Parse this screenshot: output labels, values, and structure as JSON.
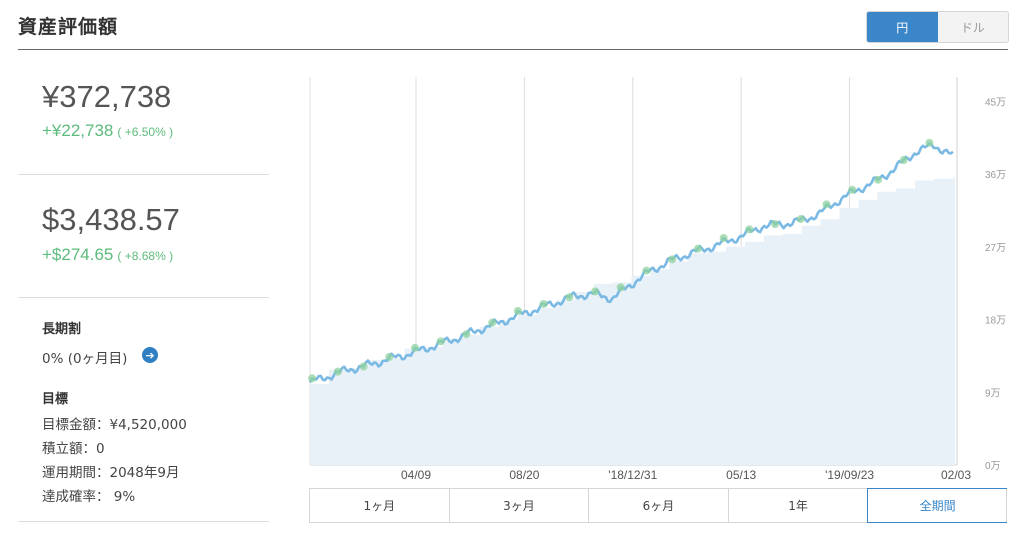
{
  "title": "資産評価額",
  "currency_toggle": {
    "yen": "円",
    "dollar": "ドル",
    "selected": "円"
  },
  "yen_summary": {
    "value": "¥372,738",
    "gain": "+¥22,738",
    "gain_pct": "( +6.50% )"
  },
  "usd_summary": {
    "value": "$3,438.57",
    "gain": "+$274.65",
    "gain_pct": "( +8.68% )"
  },
  "long_term": {
    "heading": "長期割",
    "value": "0% (0ヶ月目)"
  },
  "goal": {
    "heading": "目標",
    "target_amount": "目標金額：¥4,520,000",
    "accumulation": "積立額：0",
    "period": "運用期間：2048年9月",
    "achievement": "達成確率： 9%"
  },
  "periods": [
    "1ヶ月",
    "3ヶ月",
    "6ヶ月",
    "1年",
    "全期間"
  ],
  "selected_period": "全期間",
  "colors": {
    "accent": "#3a86c8",
    "gain": "#5dbb7d",
    "line": "#7ab9e3",
    "area": "#e8f0f8",
    "marker": "#8fd19e"
  },
  "chart_data": {
    "type": "line",
    "x_ticks": [
      "04/09",
      "08/20",
      "'18/12/31",
      "05/13",
      "'19/09/23",
      "02/03"
    ],
    "y_ticks": [
      "0万",
      "9万",
      "18万",
      "27万",
      "36万",
      "45万"
    ],
    "ylim": [
      0,
      48
    ],
    "unit": "万円",
    "grid": "vertical",
    "series": [
      {
        "values": [
          10.2,
          11.0,
          11.8,
          12.3,
          13.0,
          13.6,
          14.3,
          15.1,
          15.9,
          16.8,
          17.6,
          18.5,
          19.3,
          20.1,
          20.9,
          21.2,
          20.6,
          22.4,
          24.0,
          25.2,
          26.1,
          26.8,
          27.6,
          28.5,
          29.6,
          29.8,
          30.2,
          31.2,
          32.8,
          34.1,
          35.2,
          36.8,
          38.7,
          39.6,
          38.2
        ]
      },
      {
        "values": [
          10.0,
          11.8,
          12.0,
          13.0,
          13.2,
          14.4,
          14.6,
          15.6,
          16.1,
          17.1,
          17.9,
          18.6,
          19.4,
          20.4,
          21.4,
          22.4,
          22.6,
          23.4,
          24.2,
          25.2,
          26.2,
          26.4,
          27.0,
          27.6,
          28.4,
          28.6,
          29.6,
          30.4,
          31.8,
          32.8,
          33.8,
          34.2,
          35.2,
          35.4,
          35.6
        ]
      }
    ],
    "marker_count": 25
  }
}
